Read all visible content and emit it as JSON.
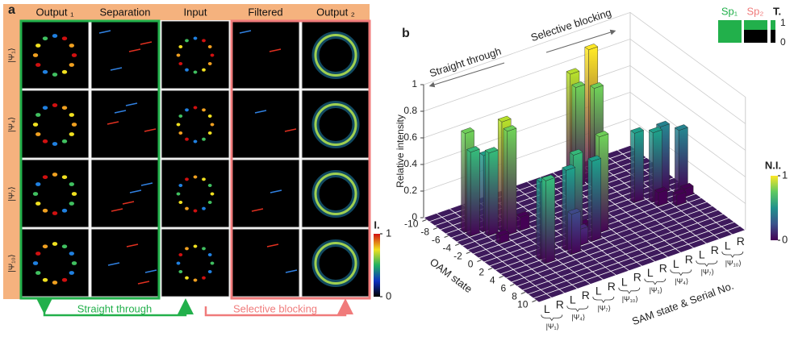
{
  "panel_a": {
    "label": "a",
    "columns": [
      "Output ₁",
      "Separation",
      "Input",
      "Filtered",
      "Output ₂"
    ],
    "rows": [
      "|Ψ₁⟩",
      "|Ψ₄⟩",
      "|Ψ₇⟩",
      "|Ψ₁₀⟩"
    ],
    "colorbar": {
      "title": "I.",
      "ticks": [
        1,
        0
      ]
    },
    "arrows": [
      "Straight through",
      "Selective blocking"
    ]
  },
  "chart_data": {
    "type": "bar3d",
    "label": "b",
    "annotations": [
      "Straight through",
      "Selective blocking"
    ],
    "zlabel": "Relative intensity",
    "xlabel": "OAM state",
    "ylabel": "SAM state & Serial No.",
    "xlim": [
      -10,
      10
    ],
    "xticks": [
      -10,
      -8,
      -6,
      -4,
      -2,
      0,
      2,
      4,
      6,
      8,
      10
    ],
    "zlim": [
      0,
      1
    ],
    "zticks": [
      0,
      0.2,
      0.4,
      0.6,
      0.8,
      1
    ],
    "sam_labels": [
      "L",
      "R",
      "L",
      "R",
      "L",
      "R",
      "L",
      "R",
      "L",
      "R",
      "L",
      "R",
      "L",
      "R",
      "L",
      "R"
    ],
    "groups": [
      "|Ψ₁⟩",
      "|Ψ₄⟩",
      "|Ψ₇⟩",
      "|Ψ₁₀⟩",
      "|Ψ₁⟩",
      "|Ψ₄⟩",
      "|Ψ₇⟩",
      "|Ψ₁₀⟩"
    ],
    "bars": [
      {
        "oam": -6,
        "sam": 1,
        "value": 0.74
      },
      {
        "oam": -5,
        "sam": 1,
        "value": 0.63
      },
      {
        "oam": -5,
        "sam": 2,
        "value": 0.57
      },
      {
        "oam": -4,
        "sam": 2,
        "value": 0.62
      },
      {
        "oam": -4,
        "sam": 3,
        "value": 0.82
      },
      {
        "oam": -3,
        "sam": 3,
        "value": 0.78
      },
      {
        "oam": -3,
        "sam": 4,
        "value": 0.1
      },
      {
        "oam": -2,
        "sam": 2,
        "value": 0.06
      },
      {
        "oam": -8,
        "sam": 10,
        "value": 0.82
      },
      {
        "oam": -7,
        "sam": 10,
        "value": 0.75
      },
      {
        "oam": -7,
        "sam": 11,
        "value": 1
      },
      {
        "oam": -6,
        "sam": 11,
        "value": 0.74
      },
      {
        "oam": -6,
        "sam": 9,
        "value": 0.08
      },
      {
        "oam": 3,
        "sam": 3,
        "value": 0.58
      },
      {
        "oam": 4,
        "sam": 3,
        "value": 0.62
      },
      {
        "oam": 3,
        "sam": 5,
        "value": 0.6
      },
      {
        "oam": 4,
        "sam": 5,
        "value": 0.3
      },
      {
        "oam": 2,
        "sam": 6,
        "value": 0.65
      },
      {
        "oam": 3,
        "sam": 6,
        "value": 0.12
      },
      {
        "oam": 3,
        "sam": 7,
        "value": 0.6
      },
      {
        "oam": 2,
        "sam": 8,
        "value": 0.72
      },
      {
        "oam": 1,
        "sam": 7,
        "value": 0.06
      },
      {
        "oam": -1,
        "sam": 12,
        "value": 0.52
      },
      {
        "oam": 0,
        "sam": 13,
        "value": 0.52
      },
      {
        "oam": -1,
        "sam": 14,
        "value": 0.5
      },
      {
        "oam": 0,
        "sam": 15,
        "value": 0.47
      },
      {
        "oam": 1,
        "sam": 13,
        "value": 0.1
      },
      {
        "oam": 2,
        "sam": 14,
        "value": 0.08
      },
      {
        "oam": 1,
        "sam": 15,
        "value": 0.06
      }
    ],
    "colorbar": {
      "title": "N.I.",
      "ticks": [
        1,
        0
      ]
    },
    "legend": {
      "items": [
        "Sp₁",
        "Sp₂"
      ],
      "colors": [
        "#22b04b",
        "#22b04b"
      ],
      "title": "T.",
      "ticks": [
        1,
        0
      ]
    }
  }
}
